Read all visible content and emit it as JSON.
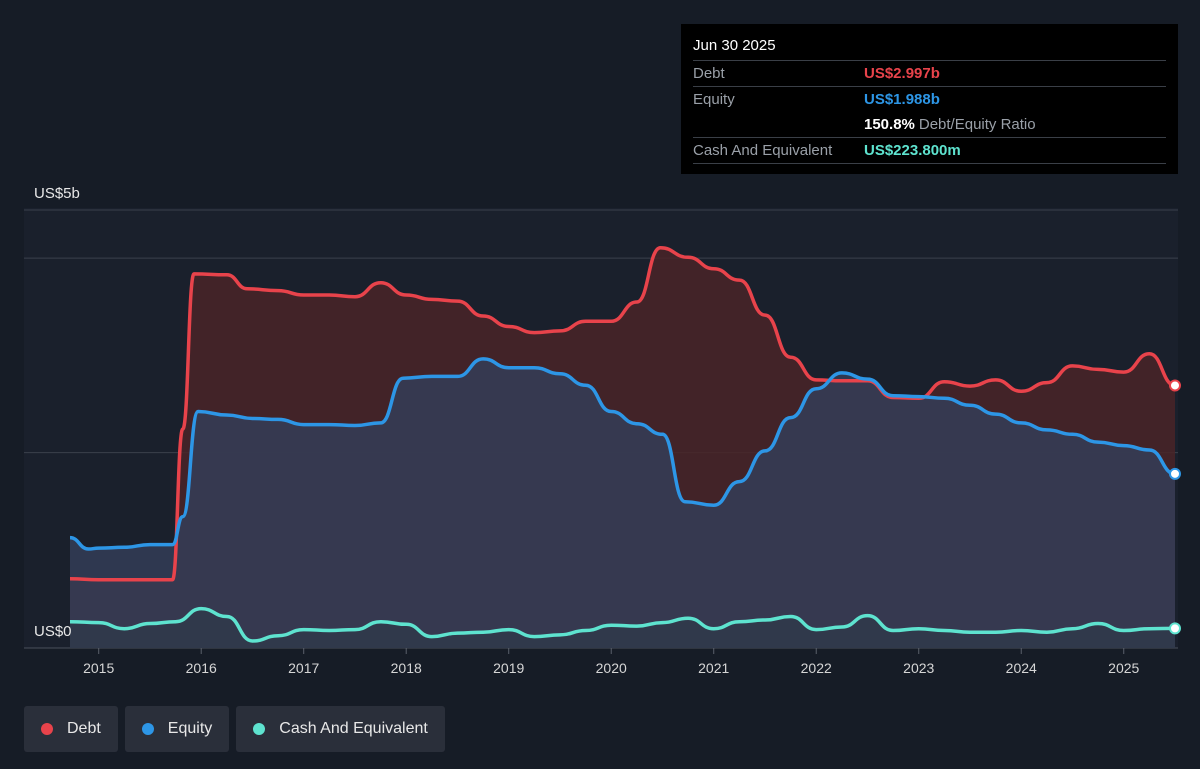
{
  "tooltip": {
    "date": "Jun 30 2025",
    "rows": [
      {
        "key": "Debt",
        "value": "US$2.997b",
        "color": "#e8434b"
      },
      {
        "key": "Equity",
        "value": "US$1.988b",
        "color": "#2d96e6"
      }
    ],
    "ratio_value": "150.8%",
    "ratio_label": "Debt/Equity Ratio",
    "cash": {
      "key": "Cash And Equivalent",
      "value": "US$223.800m",
      "color": "#5ee3cf"
    }
  },
  "legend": [
    {
      "label": "Debt",
      "color": "#e8434b"
    },
    {
      "label": "Equity",
      "color": "#2d96e6"
    },
    {
      "label": "Cash And Equivalent",
      "color": "#5ee3cf"
    }
  ],
  "chart_data": {
    "type": "area",
    "y_top_label": "US$5b",
    "y_bottom_label": "US$0",
    "ylim": [
      0,
      5
    ],
    "xlim": [
      2014.72,
      2025.5
    ],
    "x_ticks": [
      "2015",
      "2016",
      "2017",
      "2018",
      "2019",
      "2020",
      "2021",
      "2022",
      "2023",
      "2024",
      "2025"
    ],
    "x_tick_values": [
      2015,
      2016,
      2017,
      2018,
      2019,
      2020,
      2021,
      2022,
      2023,
      2024,
      2025
    ],
    "units": "US$ billions",
    "series": [
      {
        "name": "Debt",
        "color": "#e8434b",
        "fill": "#4a2428",
        "points": [
          [
            2014.72,
            0.79
          ],
          [
            2015.0,
            0.78
          ],
          [
            2015.5,
            0.78
          ],
          [
            2015.72,
            0.78
          ],
          [
            2015.82,
            2.5
          ],
          [
            2015.93,
            4.27
          ],
          [
            2016.25,
            4.26
          ],
          [
            2016.45,
            4.1
          ],
          [
            2016.75,
            4.08
          ],
          [
            2017.0,
            4.03
          ],
          [
            2017.25,
            4.03
          ],
          [
            2017.5,
            4.01
          ],
          [
            2017.75,
            4.17
          ],
          [
            2018.0,
            4.03
          ],
          [
            2018.25,
            3.98
          ],
          [
            2018.5,
            3.96
          ],
          [
            2018.75,
            3.79
          ],
          [
            2019.0,
            3.67
          ],
          [
            2019.25,
            3.6
          ],
          [
            2019.5,
            3.62
          ],
          [
            2019.75,
            3.73
          ],
          [
            2020.0,
            3.73
          ],
          [
            2020.25,
            3.95
          ],
          [
            2020.48,
            4.57
          ],
          [
            2020.75,
            4.46
          ],
          [
            2021.0,
            4.33
          ],
          [
            2021.25,
            4.2
          ],
          [
            2021.5,
            3.8
          ],
          [
            2021.75,
            3.32
          ],
          [
            2022.0,
            3.06
          ],
          [
            2022.25,
            3.05
          ],
          [
            2022.5,
            3.05
          ],
          [
            2022.75,
            2.86
          ],
          [
            2023.0,
            2.85
          ],
          [
            2023.25,
            3.04
          ],
          [
            2023.5,
            2.99
          ],
          [
            2023.75,
            3.06
          ],
          [
            2024.0,
            2.93
          ],
          [
            2024.25,
            3.03
          ],
          [
            2024.5,
            3.22
          ],
          [
            2024.75,
            3.18
          ],
          [
            2025.0,
            3.15
          ],
          [
            2025.25,
            3.36
          ],
          [
            2025.5,
            2.997
          ]
        ]
      },
      {
        "name": "Equity",
        "color": "#2d96e6",
        "fill": "#343d57",
        "points": [
          [
            2014.72,
            1.26
          ],
          [
            2014.9,
            1.13
          ],
          [
            2015.0,
            1.14
          ],
          [
            2015.25,
            1.15
          ],
          [
            2015.5,
            1.18
          ],
          [
            2015.72,
            1.18
          ],
          [
            2015.82,
            1.5
          ],
          [
            2015.97,
            2.7
          ],
          [
            2016.25,
            2.66
          ],
          [
            2016.5,
            2.62
          ],
          [
            2016.75,
            2.61
          ],
          [
            2017.0,
            2.55
          ],
          [
            2017.25,
            2.55
          ],
          [
            2017.5,
            2.54
          ],
          [
            2017.75,
            2.57
          ],
          [
            2017.97,
            3.08
          ],
          [
            2018.25,
            3.1
          ],
          [
            2018.5,
            3.1
          ],
          [
            2018.75,
            3.3
          ],
          [
            2019.0,
            3.2
          ],
          [
            2019.25,
            3.2
          ],
          [
            2019.5,
            3.13
          ],
          [
            2019.75,
            3.0
          ],
          [
            2020.0,
            2.7
          ],
          [
            2020.25,
            2.56
          ],
          [
            2020.5,
            2.44
          ],
          [
            2020.72,
            1.67
          ],
          [
            2021.0,
            1.63
          ],
          [
            2021.25,
            1.9
          ],
          [
            2021.5,
            2.25
          ],
          [
            2021.75,
            2.63
          ],
          [
            2022.0,
            2.96
          ],
          [
            2022.25,
            3.14
          ],
          [
            2022.5,
            3.07
          ],
          [
            2022.75,
            2.88
          ],
          [
            2023.0,
            2.87
          ],
          [
            2023.25,
            2.85
          ],
          [
            2023.5,
            2.77
          ],
          [
            2023.75,
            2.67
          ],
          [
            2024.0,
            2.57
          ],
          [
            2024.25,
            2.49
          ],
          [
            2024.5,
            2.44
          ],
          [
            2024.75,
            2.35
          ],
          [
            2025.0,
            2.31
          ],
          [
            2025.25,
            2.26
          ],
          [
            2025.5,
            1.988
          ]
        ]
      },
      {
        "name": "Cash And Equivalent",
        "color": "#5ee3cf",
        "fill": "#2a3a44",
        "points": [
          [
            2014.72,
            0.3
          ],
          [
            2015.0,
            0.29
          ],
          [
            2015.25,
            0.22
          ],
          [
            2015.5,
            0.28
          ],
          [
            2015.75,
            0.3
          ],
          [
            2016.0,
            0.45
          ],
          [
            2016.25,
            0.36
          ],
          [
            2016.5,
            0.08
          ],
          [
            2016.75,
            0.14
          ],
          [
            2017.0,
            0.21
          ],
          [
            2017.25,
            0.2
          ],
          [
            2017.5,
            0.21
          ],
          [
            2017.75,
            0.3
          ],
          [
            2018.0,
            0.27
          ],
          [
            2018.25,
            0.13
          ],
          [
            2018.5,
            0.17
          ],
          [
            2018.75,
            0.18
          ],
          [
            2019.0,
            0.21
          ],
          [
            2019.25,
            0.13
          ],
          [
            2019.5,
            0.15
          ],
          [
            2019.75,
            0.2
          ],
          [
            2020.0,
            0.26
          ],
          [
            2020.25,
            0.25
          ],
          [
            2020.5,
            0.29
          ],
          [
            2020.75,
            0.34
          ],
          [
            2021.0,
            0.22
          ],
          [
            2021.25,
            0.3
          ],
          [
            2021.5,
            0.32
          ],
          [
            2021.75,
            0.36
          ],
          [
            2022.0,
            0.21
          ],
          [
            2022.25,
            0.24
          ],
          [
            2022.5,
            0.37
          ],
          [
            2022.75,
            0.2
          ],
          [
            2023.0,
            0.22
          ],
          [
            2023.25,
            0.2
          ],
          [
            2023.5,
            0.18
          ],
          [
            2023.75,
            0.18
          ],
          [
            2024.0,
            0.2
          ],
          [
            2024.25,
            0.18
          ],
          [
            2024.5,
            0.22
          ],
          [
            2024.75,
            0.28
          ],
          [
            2025.0,
            0.2
          ],
          [
            2025.25,
            0.22
          ],
          [
            2025.5,
            0.224
          ]
        ]
      }
    ]
  }
}
